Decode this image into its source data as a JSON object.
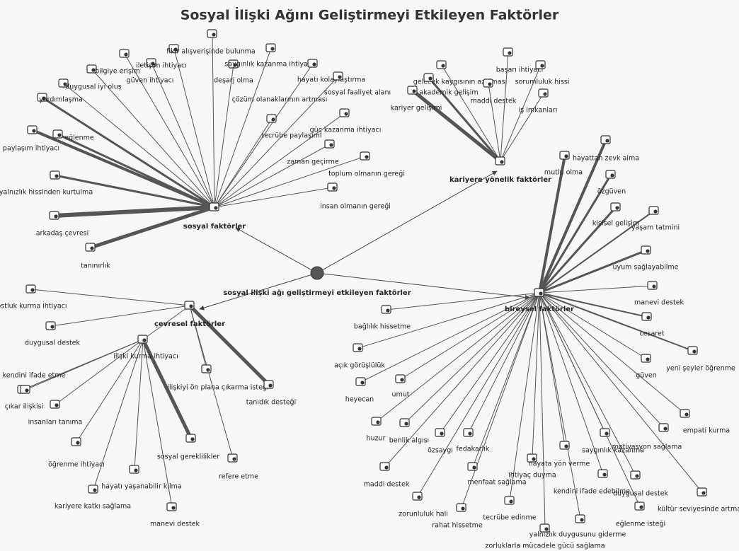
{
  "title": "Sosyal İlişki Ağını Geliştirmeyi Etkileyen Faktörler",
  "center": {
    "label": "sosyal ilişki ağı geliştirmeyi etkileyen faktörler"
  },
  "groups": [
    {
      "label": "sosyal faktörler",
      "children": [
        {
          "label": "fikir alışverişinde bulunma"
        },
        {
          "label": "iletişim ihtiyacı"
        },
        {
          "label": "bilgiye erişim"
        },
        {
          "label": "güven ihtiyacı"
        },
        {
          "label": "duygusal iyi oluş"
        },
        {
          "label": "yardımlaşma"
        },
        {
          "label": "eğlenme"
        },
        {
          "label": "paylaşım ihtiyacı"
        },
        {
          "label": "yalnızlık hissinden kurtulma"
        },
        {
          "label": "arkadaş çevresi"
        },
        {
          "label": "tanınırlık"
        },
        {
          "label": "deşarj olma"
        },
        {
          "label": "saygınlık kazanma ihtiyacı"
        },
        {
          "label": "hayatı kolaylaştırma"
        },
        {
          "label": "çözüm olanaklarının artması"
        },
        {
          "label": "sosyal faaliyet alanı"
        },
        {
          "label": "tecrübe paylaşımı"
        },
        {
          "label": "güç kazanma ihtiyacı"
        },
        {
          "label": "zaman geçirme"
        },
        {
          "label": "toplum olmanın gereği"
        },
        {
          "label": "insan olmanın gereği"
        }
      ]
    },
    {
      "label": "kariyere yönelik faktörler",
      "children": [
        {
          "label": "gelecek kaygısının azalması"
        },
        {
          "label": "başarı ihtiyacı"
        },
        {
          "label": "sorumluluk hissi"
        },
        {
          "label": "akademik gelişim"
        },
        {
          "label": "maddi destek"
        },
        {
          "label": "kariyer gelişimi"
        },
        {
          "label": "iş imkanları"
        }
      ]
    },
    {
      "label": "çevresel faktörler",
      "children": [
        {
          "label": "dostluk kurma ihtiyacı"
        },
        {
          "label": "duygusal destek"
        },
        {
          "label": "ilişki kurma ihtiyacı",
          "children": [
            {
              "label": "kendini ifade etme"
            },
            {
              "label": "çıkar ilişkisi"
            },
            {
              "label": "insanları tanıma"
            },
            {
              "label": "öğrenme ihtiyacı"
            },
            {
              "label": "hayatı yaşanabilir kılma"
            },
            {
              "label": "kariyere katkı sağlama"
            },
            {
              "label": "manevi destek"
            },
            {
              "label": "sosyal gereklilikler"
            }
          ]
        },
        {
          "label": "ilişkiyi ön plana çıkarma isteği"
        },
        {
          "label": "tanıdık desteği"
        },
        {
          "label": "refere etme"
        }
      ]
    },
    {
      "label": "bireysel faktörler",
      "children": [
        {
          "label": "mutlu olma"
        },
        {
          "label": "hayattan zevk alma"
        },
        {
          "label": "özgüven"
        },
        {
          "label": "kişisel gelişim"
        },
        {
          "label": "yaşam tatmini"
        },
        {
          "label": "uyum sağlayabilme"
        },
        {
          "label": "manevi destek"
        },
        {
          "label": "cesaret"
        },
        {
          "label": "yeni şeyler öğrenme"
        },
        {
          "label": "güven"
        },
        {
          "label": "empati kurma"
        },
        {
          "label": "motivasyon sağlama"
        },
        {
          "label": "kültür seviyesinde artma"
        },
        {
          "label": "duygusal destek"
        },
        {
          "label": "eğlenme isteği"
        },
        {
          "label": "saygınlık kazanma"
        },
        {
          "label": "kendini ifade edebilme"
        },
        {
          "label": "yalnızlık duygusunu giderme"
        },
        {
          "label": "hayata yön verme"
        },
        {
          "label": "zorluklarla mücadele gücü sağlama"
        },
        {
          "label": "ihtiyaç duyma"
        },
        {
          "label": "tecrübe edinme"
        },
        {
          "label": "menfaat sağlama"
        },
        {
          "label": "rahat hissetme"
        },
        {
          "label": "fedakarlık"
        },
        {
          "label": "zorunluluk hali"
        },
        {
          "label": "özsaygı"
        },
        {
          "label": "maddi destek"
        },
        {
          "label": "benlik algısı"
        },
        {
          "label": "huzur"
        },
        {
          "label": "umut"
        },
        {
          "label": "heyecan"
        },
        {
          "label": "açık görüşlülük"
        },
        {
          "label": "bağlılık hissetme"
        }
      ]
    }
  ]
}
